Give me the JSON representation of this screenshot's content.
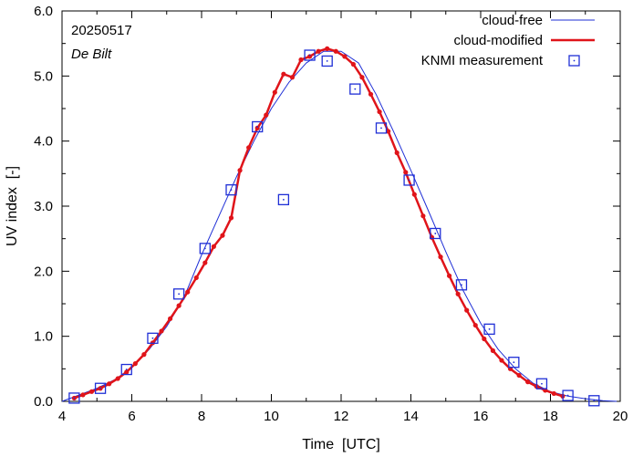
{
  "chart_data": {
    "type": "line",
    "title": "",
    "xlabel": "Time  [UTC]",
    "ylabel": "UV index  [-]",
    "xlim": [
      4,
      20
    ],
    "ylim": [
      0,
      6
    ],
    "xticks": [
      4,
      6,
      8,
      10,
      12,
      14,
      16,
      18,
      20
    ],
    "xtick_labels": [
      "4",
      "6",
      "8",
      "10",
      "12",
      "14",
      "16",
      "18",
      "20"
    ],
    "yticks": [
      0,
      1,
      2,
      3,
      4,
      5,
      6
    ],
    "ytick_labels": [
      "0.0",
      "1.0",
      "2.0",
      "3.0",
      "4.0",
      "5.0",
      "6.0"
    ],
    "grid": false,
    "legend_position": "top-right",
    "annotations": {
      "date": "20250517",
      "location": "De Bilt"
    },
    "colors": {
      "cloud_free": "#1f2fd6",
      "cloud_modified": "#e0141a",
      "measurement": "#1f2fd6"
    },
    "series": [
      {
        "name": "cloud-free",
        "style": "thin-line",
        "x": [
          4.0,
          4.5,
          5.0,
          5.5,
          6.0,
          6.5,
          7.0,
          7.5,
          8.0,
          8.5,
          9.0,
          9.5,
          10.0,
          10.5,
          11.0,
          11.5,
          12.0,
          12.5,
          13.0,
          13.5,
          14.0,
          14.5,
          15.0,
          15.5,
          16.0,
          16.5,
          17.0,
          17.5,
          18.0,
          18.5,
          19.0,
          19.5,
          19.9
        ],
        "y": [
          0.0,
          0.1,
          0.2,
          0.33,
          0.52,
          0.8,
          1.15,
          1.6,
          2.25,
          2.85,
          3.45,
          4.0,
          4.5,
          4.9,
          5.2,
          5.38,
          5.38,
          5.2,
          4.72,
          4.15,
          3.55,
          2.93,
          2.3,
          1.7,
          1.2,
          0.8,
          0.5,
          0.28,
          0.15,
          0.08,
          0.04,
          0.01,
          0.0
        ]
      },
      {
        "name": "cloud-modified",
        "style": "thick-line-with-dots",
        "x": [
          4.35,
          4.6,
          4.85,
          5.1,
          5.35,
          5.6,
          5.85,
          6.1,
          6.35,
          6.6,
          6.85,
          7.1,
          7.35,
          7.6,
          7.85,
          8.1,
          8.35,
          8.6,
          8.85,
          9.1,
          9.35,
          9.6,
          9.85,
          10.1,
          10.35,
          10.6,
          10.85,
          11.1,
          11.35,
          11.6,
          11.85,
          12.1,
          12.35,
          12.6,
          12.85,
          13.1,
          13.35,
          13.6,
          13.85,
          14.1,
          14.35,
          14.6,
          14.85,
          15.1,
          15.35,
          15.6,
          15.85,
          16.1,
          16.35,
          16.6,
          16.85,
          17.1,
          17.35,
          17.6,
          17.85,
          18.1,
          18.35
        ],
        "y": [
          0.05,
          0.1,
          0.15,
          0.2,
          0.27,
          0.35,
          0.45,
          0.58,
          0.72,
          0.9,
          1.08,
          1.27,
          1.47,
          1.68,
          1.9,
          2.13,
          2.38,
          2.55,
          2.82,
          3.55,
          3.9,
          4.2,
          4.4,
          4.75,
          5.03,
          4.98,
          5.25,
          5.3,
          5.38,
          5.42,
          5.38,
          5.3,
          5.18,
          4.98,
          4.72,
          4.45,
          4.15,
          3.82,
          3.52,
          3.18,
          2.85,
          2.52,
          2.22,
          1.93,
          1.65,
          1.4,
          1.17,
          0.96,
          0.78,
          0.63,
          0.5,
          0.4,
          0.3,
          0.23,
          0.17,
          0.12,
          0.08
        ]
      },
      {
        "name": "KNMI measurement",
        "style": "open-square-markers",
        "x": [
          4.35,
          5.1,
          5.85,
          6.6,
          7.35,
          8.1,
          8.85,
          9.6,
          10.35,
          11.1,
          11.6,
          12.4,
          13.15,
          13.95,
          14.7,
          15.45,
          16.25,
          16.95,
          17.75,
          18.5,
          19.25
        ],
        "y": [
          0.05,
          0.2,
          0.49,
          0.97,
          1.65,
          2.35,
          3.25,
          4.22,
          3.1,
          5.32,
          5.23,
          4.8,
          4.2,
          3.4,
          2.58,
          1.79,
          1.11,
          0.6,
          0.27,
          0.09,
          0.01
        ]
      }
    ]
  }
}
